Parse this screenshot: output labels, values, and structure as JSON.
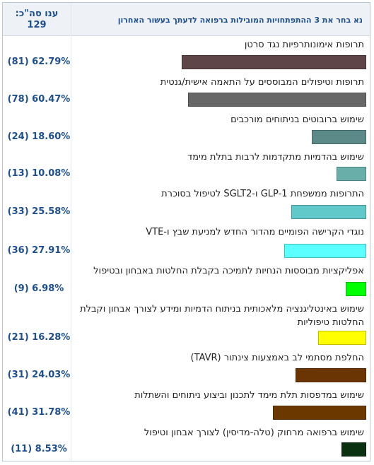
{
  "header": {
    "question": "נא בחר את 3 ההתפתחויות המובילות ברפואה לדעתך בעשור האחרון",
    "total_label": "ענו סה\"כ:",
    "total_value": "129"
  },
  "chart_data": {
    "type": "bar",
    "orientation": "horizontal",
    "xlim": [
      0,
      100
    ],
    "categories": [
      "תרופות אימונותרפיות נגד סרטן",
      "תרופות וטיפולים המבוססים על התאמה אישית/גנטית",
      "שימוש ברובוטים בניתוחים מורכבים",
      "שימוש בהדמיות מתקדמות לרבות בתלת מימד",
      "התרופות ממשפחת GLP-1 ו-SGLT2 לטיפול בסוכרת",
      "נוגדי הקרישה הפומיים מהדור החדש למניעת שבץ ו-VTE",
      "אפליקציות מבוססות הנחיות לתמיכה בקבלת החלטות באבחון ובטיפול",
      "שימוש באינטליגנציה מלאכותית בניתוח הדמיות ומידע לצורך אבחון וקבלת החלטות טיפוליות",
      "החלפת מסתמי לב באמצעות צינתור (TAVR)",
      "שימוש במדפסות תלת מימד לתכנון וביצוע ניתוחים והשתלות",
      "שימוש ברפואה מרחוק (טלה-מדיסין) לצורך אבחון וטיפול"
    ],
    "values": [
      62.79,
      60.47,
      18.6,
      10.08,
      25.58,
      27.91,
      6.98,
      16.28,
      24.03,
      31.78,
      8.53
    ],
    "counts": [
      81,
      78,
      24,
      13,
      33,
      36,
      9,
      21,
      31,
      41,
      11
    ],
    "value_labels": [
      "(81) 62.79%",
      "(78) 60.47%",
      "(24) 18.60%",
      "(13) 10.08%",
      "(33) 25.58%",
      "(36) 27.91%",
      "(9) 6.98%",
      "(21) 16.28%",
      "(31) 24.03%",
      "(41) 31.78%",
      "(11) 8.53%"
    ],
    "colors": [
      "#5e4548",
      "#676767",
      "#5c8a89",
      "#6aaeaa",
      "#62c9cb",
      "#5cffff",
      "#00ff00",
      "#ffff00",
      "#6b3503",
      "#6b3800",
      "#0b3210"
    ]
  }
}
